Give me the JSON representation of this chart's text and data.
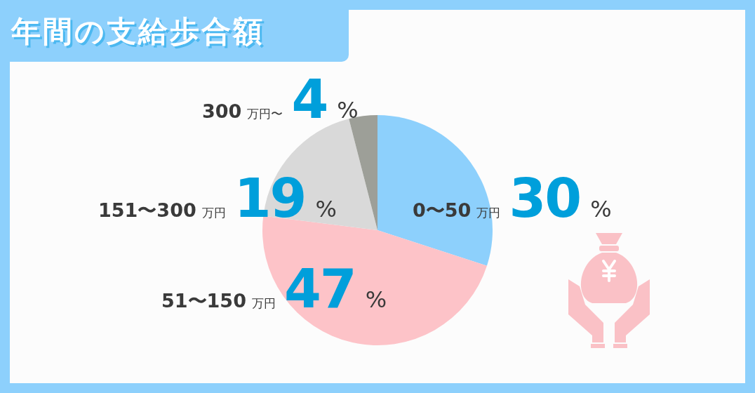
{
  "chart_data": {
    "type": "pie",
    "title": "年間の支給歩合額",
    "categories": [
      "0〜50 万円",
      "51〜150 万円",
      "151〜300 万円",
      "300 万円〜"
    ],
    "values": [
      30,
      47,
      19,
      4
    ],
    "colors": [
      "#8dd0fc",
      "#fdc3c8",
      "#d9d9d9",
      "#9d9f98"
    ],
    "value_labels": [
      "30%",
      "47%",
      "19%",
      "4%"
    ]
  }
}
